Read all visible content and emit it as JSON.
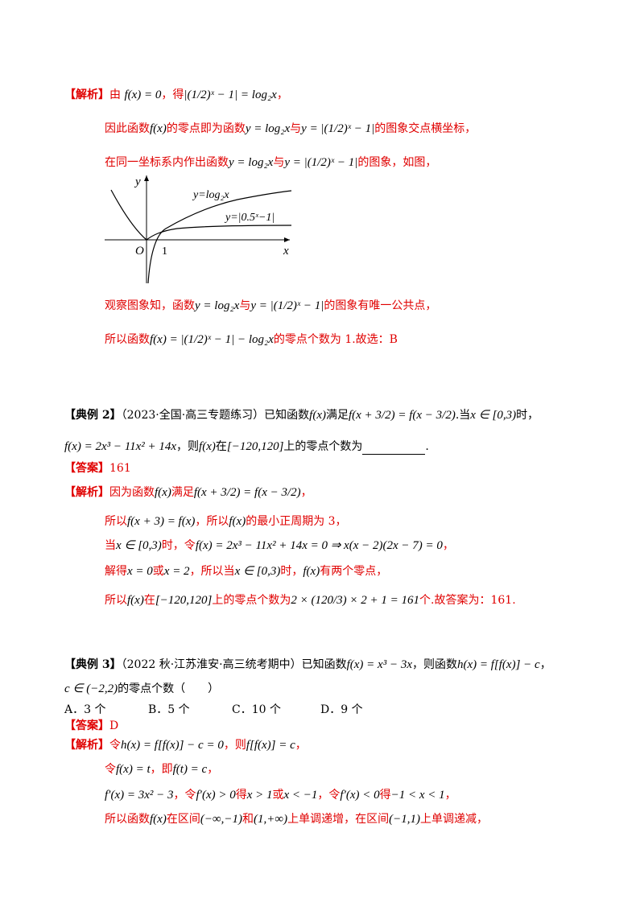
{
  "sol1": {
    "line1_tag": "【解析】",
    "line1_a": "由",
    "line1_m1": "f(x) = 0",
    "line1_b": "，得",
    "line1_m2": "|(1/2)ˣ − 1| = log₂x",
    "line1_c": "，",
    "line2_a": "因此函数",
    "line2_m1": "f(x)",
    "line2_b": "的零点即为函数",
    "line2_m2": "y = log₂x",
    "line2_c": "与",
    "line2_m3": "y = |(1/2)ˣ − 1|",
    "line2_d": "的图象交点横坐标，",
    "line3_a": "在同一坐标系内作出函数",
    "line3_m1": "y = log₂x",
    "line3_b": "与",
    "line3_m2": "y = |(1/2)ˣ − 1|",
    "line3_c": "的图象，如图，",
    "line4_a": "观察图象知，函数",
    "line4_m1": "y = log₂x",
    "line4_b": "与",
    "line4_m2": "y = |(1/2)ˣ − 1|",
    "line4_c": "的图象有唯一公共点，",
    "line5_a": "所以函数",
    "line5_m1": "f(x) = |(1/2)ˣ − 1| − log₂x",
    "line5_b": "的零点个数为 1.故选：B"
  },
  "graph": {
    "y_axis": "y",
    "x_axis": "x",
    "origin": "O",
    "tick_one": "1",
    "label_log": "y=log₂x",
    "label_abs": "y=|0.5ˣ−1|"
  },
  "ex2": {
    "tag": "【典例 2】",
    "source": "（2023·全国·高三专题练习）已知函数",
    "m1": "f(x)",
    "t1": "满足",
    "m2": "f(x + 3/2) = f(x − 3/2)",
    "t2": ".当",
    "m3": "x ∈ [0,3)",
    "t3": "时，",
    "line2_m1": "f(x) = 2x³ − 11x² + 14x",
    "line2_t1": "，则",
    "line2_m2": "f(x)",
    "line2_t2": "在",
    "line2_m3": "[−120,120]",
    "line2_t3": "上的零点个数为",
    "line2_end": ".",
    "answer_tag": "【答案】",
    "answer": "161",
    "sol_tag": "【解析】",
    "sol1_a": "因为函数",
    "sol1_m1": "f(x)",
    "sol1_b": "满足",
    "sol1_m2": "f(x + 3/2) = f(x − 3/2)",
    "sol1_c": "，",
    "sol2_a": "所以",
    "sol2_m1": "f(x + 3) = f(x)",
    "sol2_b": "，所以",
    "sol2_m2": "f(x)",
    "sol2_c": "的最小正周期为 3，",
    "sol3_a": "当",
    "sol3_m1": "x ∈ [0,3)",
    "sol3_b": "时，令",
    "sol3_m2": "f(x) = 2x³ − 11x² + 14x = 0 ⇒ x(x − 2)(2x − 7) = 0",
    "sol3_c": "，",
    "sol4_a": "解得",
    "sol4_m1": "x = 0",
    "sol4_b": "或",
    "sol4_m2": "x = 2",
    "sol4_c": "，所以当",
    "sol4_m3": "x ∈ [0,3)",
    "sol4_d": "时，",
    "sol4_m4": "f(x)",
    "sol4_e": "有两个零点，",
    "sol5_a": "所以",
    "sol5_m1": "f(x)",
    "sol5_b": "在",
    "sol5_m2": "[−120,120]",
    "sol5_c": "上的零点个数为",
    "sol5_m3": "2 × (120/3) × 2 + 1 = 161",
    "sol5_d": "个.故答案为：161."
  },
  "ex3": {
    "tag": "【典例 3】",
    "source": "（2022 秋·江苏淮安·高三统考期中）已知函数",
    "m1": "f(x) = x³ − 3x",
    "t1": "，则函数",
    "m2": "h(x) = f[f(x)] − c",
    "t2": "，",
    "line2_m1": "c ∈ (−2,2)",
    "line2_t1": "的零点个数（　　）",
    "options": [
      "A．3 个",
      "B．5 个",
      "C．10 个",
      "D．9 个"
    ],
    "answer_tag": "【答案】",
    "answer": "D",
    "sol_tag": "【解析】",
    "sol1_a": "令",
    "sol1_m1": "h(x) = f[f(x)] − c = 0",
    "sol1_b": "，则",
    "sol1_m2": "f[f(x)] = c",
    "sol1_c": "，",
    "sol2_a": "令",
    "sol2_m1": "f(x) = t",
    "sol2_b": "，即",
    "sol2_m2": "f(t) = c",
    "sol2_c": "，",
    "sol3_m1": "f′(x) = 3x² − 3",
    "sol3_a": "，令",
    "sol3_m2": "f′(x) > 0",
    "sol3_b": "得",
    "sol3_m3": "x > 1",
    "sol3_c": "或",
    "sol3_m4": "x < −1",
    "sol3_d": "，令",
    "sol3_m5": "f′(x) < 0",
    "sol3_e": "得",
    "sol3_m6": "−1 < x < 1",
    "sol3_f": "，",
    "sol4_a": "所以函数",
    "sol4_m1": "f(x)",
    "sol4_b": "在区间",
    "sol4_m2": "(−∞,−1)",
    "sol4_c": "和",
    "sol4_m3": "(1,+∞)",
    "sol4_d": "上单调递增，在区间",
    "sol4_m4": "(−1,1)",
    "sol4_e": "上单调递减，"
  }
}
